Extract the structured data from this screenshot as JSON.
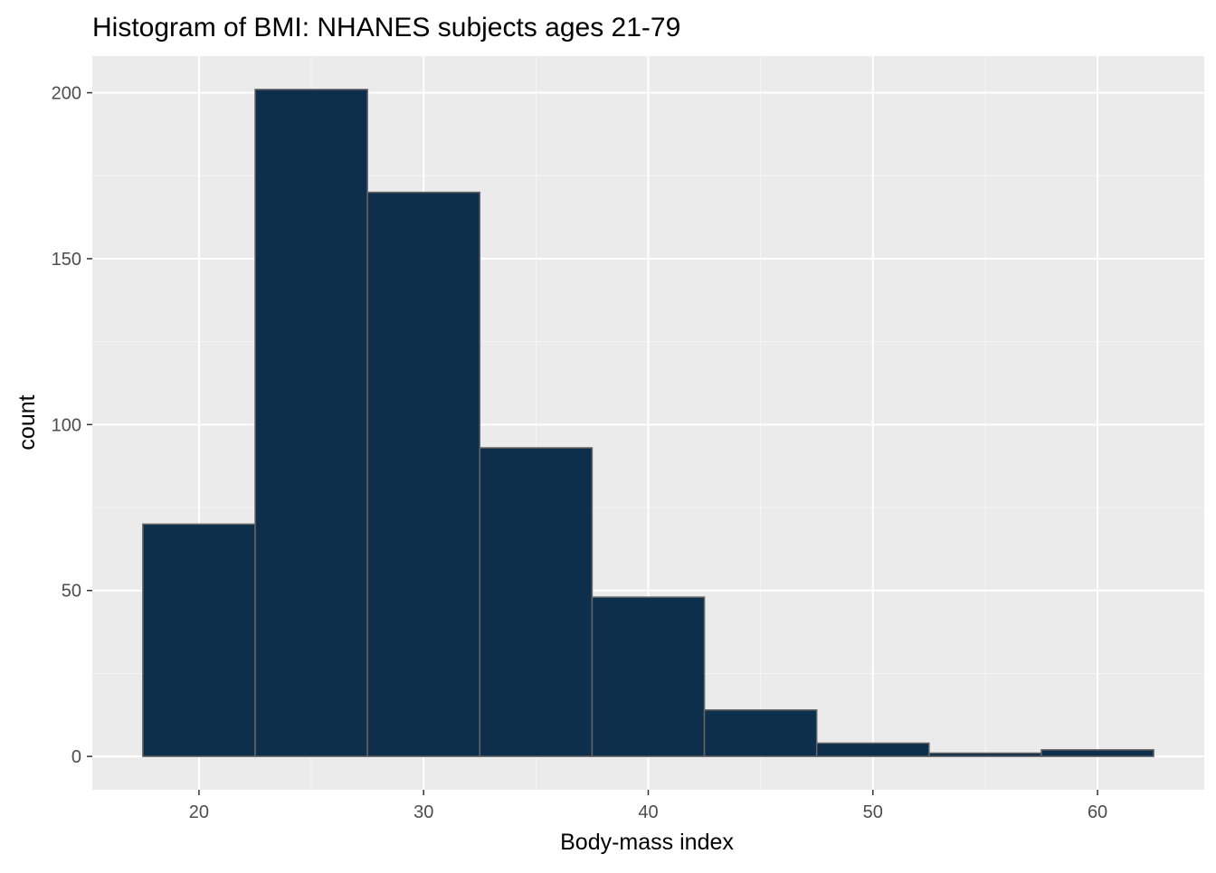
{
  "chart_data": {
    "type": "bar",
    "title": "Histogram of BMI: NHANES subjects ages 21-79",
    "xlabel": "Body-mass index",
    "ylabel": "count",
    "bin_width": 5,
    "bins": [
      {
        "x0": 17.5,
        "x1": 22.5,
        "count": 70
      },
      {
        "x0": 22.5,
        "x1": 27.5,
        "count": 201
      },
      {
        "x0": 27.5,
        "x1": 32.5,
        "count": 170
      },
      {
        "x0": 32.5,
        "x1": 37.5,
        "count": 93
      },
      {
        "x0": 37.5,
        "x1": 42.5,
        "count": 48
      },
      {
        "x0": 42.5,
        "x1": 47.5,
        "count": 14
      },
      {
        "x0": 47.5,
        "x1": 52.5,
        "count": 4
      },
      {
        "x0": 52.5,
        "x1": 57.5,
        "count": 1
      },
      {
        "x0": 57.5,
        "x1": 62.5,
        "count": 2
      }
    ],
    "xlim": [
      15.25,
      64.75
    ],
    "ylim": [
      -10.05,
      211.05
    ],
    "x_ticks": [
      20,
      30,
      40,
      50,
      60
    ],
    "x_tick_labels": [
      "20",
      "30",
      "40",
      "50",
      "60"
    ],
    "y_ticks": [
      0,
      50,
      100,
      150,
      200
    ],
    "y_tick_labels": [
      "0",
      "50",
      "100",
      "150",
      "200"
    ],
    "grid": true,
    "colors": {
      "panel_background": "#ebebeb",
      "grid_major": "#ffffff",
      "grid_minor": "#f5f5f5",
      "bar_fill": "#0e2f4b",
      "bar_outline": "#666666",
      "tick_mark": "#333333"
    }
  }
}
